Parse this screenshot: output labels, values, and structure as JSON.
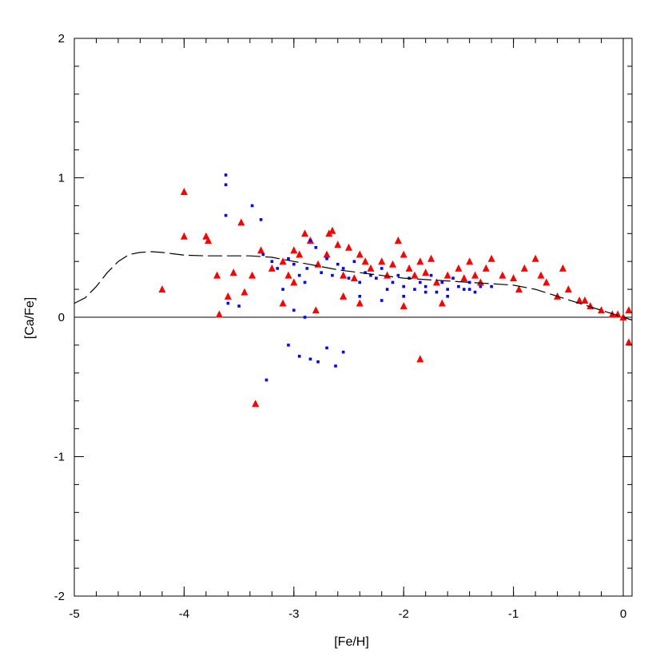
{
  "chart_data": {
    "type": "scatter",
    "title": "",
    "xlabel": "[Fe/H]",
    "ylabel": "[Ca/Fe]",
    "xlim": [
      -5,
      0.08
    ],
    "ylim": [
      -2,
      2
    ],
    "x_ticks": [
      "-5",
      "-4",
      "-3",
      "-2",
      "-1",
      "0"
    ],
    "y_ticks": [
      "-2",
      "-1",
      "0",
      "1",
      "2"
    ],
    "grid": false,
    "legend": "none",
    "reference_lines": [
      {
        "axis": "y",
        "value": 0
      },
      {
        "axis": "x",
        "value": 0
      }
    ],
    "colors": {
      "red_series": "#ff0000",
      "blue_series": "#0000ff",
      "model_line": "#000000"
    },
    "series": [
      {
        "marker": "triangle",
        "color": "#ff0000",
        "x": [
          -4.2,
          -4.0,
          -4.0,
          -3.8,
          -3.78,
          -3.68,
          -3.55,
          -3.48,
          -3.45,
          -3.38,
          -3.3,
          -3.2,
          -3.1,
          -3.05,
          -3.0,
          -2.95,
          -2.9,
          -2.85,
          -2.78,
          -2.7,
          -2.68,
          -2.65,
          -2.6,
          -2.55,
          -2.5,
          -2.45,
          -2.4,
          -2.35,
          -2.3,
          -2.2,
          -2.15,
          -2.1,
          -2.05,
          -2.0,
          -1.95,
          -1.9,
          -1.85,
          -1.8,
          -1.75,
          -1.7,
          -1.6,
          -1.5,
          -1.45,
          -1.4,
          -1.35,
          -1.3,
          -1.2,
          -1.1,
          -1.0,
          -0.95,
          -0.9,
          -0.8,
          -0.75,
          -0.7,
          -0.6,
          -0.5,
          -0.4,
          -0.3,
          -0.2,
          -0.1,
          0.0,
          0.05,
          -3.35,
          -1.85,
          -3.6,
          -3.1,
          -2.8,
          -2.4,
          -1.65,
          -0.55,
          0.05,
          -3.7,
          -3.0,
          -2.55,
          -2.0,
          -1.25,
          -0.35,
          -0.05
        ],
        "y": [
          0.2,
          0.9,
          0.58,
          0.58,
          0.55,
          0.02,
          0.32,
          0.68,
          0.18,
          0.3,
          0.48,
          0.35,
          0.4,
          0.3,
          0.48,
          0.45,
          0.6,
          0.55,
          0.38,
          0.45,
          0.6,
          0.62,
          0.52,
          0.3,
          0.5,
          0.28,
          0.45,
          0.4,
          0.35,
          0.4,
          0.3,
          0.38,
          0.55,
          0.45,
          0.35,
          0.3,
          0.4,
          0.32,
          0.42,
          0.25,
          0.3,
          0.35,
          0.28,
          0.4,
          0.3,
          0.25,
          0.42,
          0.3,
          0.28,
          0.2,
          0.35,
          0.42,
          0.3,
          0.25,
          0.15,
          0.2,
          0.12,
          0.08,
          0.05,
          0.02,
          0.0,
          0.05,
          -0.62,
          -0.3,
          0.15,
          0.1,
          0.05,
          0.1,
          0.1,
          0.35,
          -0.18,
          0.3,
          0.25,
          0.15,
          0.08,
          0.35,
          0.12,
          0.02
        ]
      },
      {
        "marker": "square",
        "color": "#0000ff",
        "x": [
          -3.62,
          -3.62,
          -3.62,
          -3.38,
          -3.3,
          -3.28,
          -3.2,
          -3.15,
          -3.1,
          -3.05,
          -3.0,
          -2.95,
          -2.9,
          -2.88,
          -2.85,
          -2.8,
          -2.75,
          -2.7,
          -2.65,
          -2.6,
          -2.55,
          -2.5,
          -2.45,
          -2.4,
          -2.35,
          -2.3,
          -2.25,
          -2.2,
          -2.15,
          -2.1,
          -2.05,
          -2.0,
          -1.95,
          -1.9,
          -1.85,
          -1.8,
          -1.75,
          -1.7,
          -1.65,
          -1.6,
          -1.55,
          -1.5,
          -1.45,
          -1.4,
          -1.35,
          -1.3,
          -3.05,
          -2.95,
          -2.85,
          -2.78,
          -2.7,
          -2.62,
          -2.55,
          -3.25,
          -3.6,
          -3.5,
          -2.9,
          -3.0,
          -2.4,
          -2.2,
          -2.0,
          -1.8,
          -1.6,
          -1.4,
          -1.2
        ],
        "y": [
          1.02,
          0.95,
          0.73,
          0.8,
          0.7,
          0.45,
          0.4,
          0.35,
          0.2,
          0.42,
          0.38,
          0.3,
          0.25,
          0.35,
          0.55,
          0.5,
          0.32,
          0.42,
          0.3,
          0.38,
          0.35,
          0.28,
          0.4,
          0.25,
          0.32,
          0.3,
          0.28,
          0.35,
          0.2,
          0.25,
          0.3,
          0.22,
          0.28,
          0.2,
          0.25,
          0.22,
          0.3,
          0.18,
          0.25,
          0.2,
          0.28,
          0.22,
          0.2,
          0.25,
          0.18,
          0.22,
          -0.2,
          -0.28,
          -0.3,
          -0.32,
          -0.22,
          -0.35,
          -0.25,
          -0.45,
          0.1,
          0.08,
          0.0,
          0.05,
          0.15,
          0.12,
          0.15,
          0.18,
          0.15,
          0.2,
          0.22
        ]
      }
    ],
    "model_line": {
      "style": "long-dash",
      "x": [
        -5.0,
        -4.9,
        -4.8,
        -4.7,
        -4.6,
        -4.5,
        -4.4,
        -4.3,
        -4.2,
        -4.1,
        -4.0,
        -3.8,
        -3.6,
        -3.4,
        -3.2,
        -3.0,
        -2.8,
        -2.6,
        -2.4,
        -2.2,
        -2.0,
        -1.8,
        -1.6,
        -1.4,
        -1.2,
        -1.0,
        -0.8,
        -0.6,
        -0.4,
        -0.2,
        0.0,
        0.08
      ],
      "y": [
        0.1,
        0.14,
        0.22,
        0.32,
        0.4,
        0.45,
        0.465,
        0.47,
        0.465,
        0.455,
        0.445,
        0.44,
        0.44,
        0.44,
        0.43,
        0.4,
        0.37,
        0.34,
        0.32,
        0.3,
        0.28,
        0.27,
        0.26,
        0.25,
        0.24,
        0.23,
        0.2,
        0.15,
        0.1,
        0.05,
        0.0,
        -0.02
      ]
    }
  }
}
